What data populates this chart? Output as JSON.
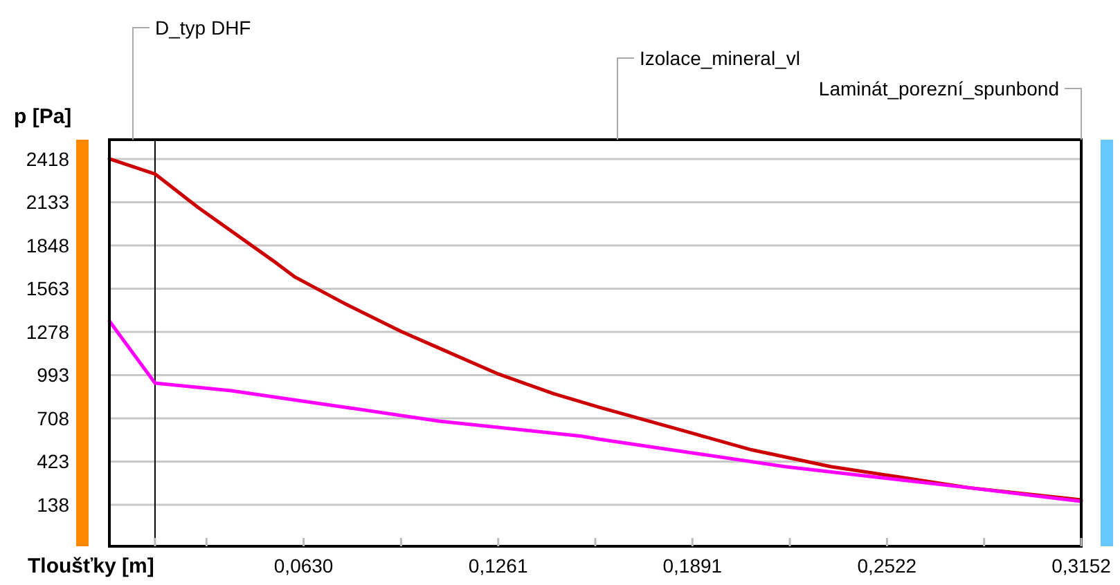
{
  "chart_data": {
    "type": "line",
    "xlabel": "Tloušťky [m]",
    "ylabel": "p [Pa]",
    "xlim": [
      0,
      0.3152
    ],
    "ylim": [
      -136,
      2546
    ],
    "xticks": [
      {
        "value": 0.0148,
        "label": null
      },
      {
        "value": 0.0315,
        "label": null
      },
      {
        "value": 0.063,
        "label": "0,0630"
      },
      {
        "value": 0.0946,
        "label": null
      },
      {
        "value": 0.1261,
        "label": "0,1261"
      },
      {
        "value": 0.1576,
        "label": null
      },
      {
        "value": 0.1891,
        "label": "0,1891"
      },
      {
        "value": 0.2207,
        "label": null
      },
      {
        "value": 0.2522,
        "label": "0,2522"
      },
      {
        "value": 0.2837,
        "label": null
      },
      {
        "value": 0.3152,
        "label": "0,3152"
      }
    ],
    "yticks": [
      138,
      423,
      708,
      993,
      1278,
      1563,
      1848,
      2133,
      2418
    ],
    "grid": "y",
    "marker": "none",
    "line_style": "solid",
    "series": [
      {
        "color": "#cc0000",
        "x": [
          0,
          0.0148,
          0.0287,
          0.0543,
          0.0602,
          0.0768,
          0.0947,
          0.1082,
          0.1262,
          0.1441,
          0.159,
          0.189,
          0.2083,
          0.2339,
          0.2564,
          0.2788,
          0.3152
        ],
        "values": [
          2420,
          2320,
          2100,
          1730,
          1640,
          1460,
          1280,
          1160,
          1000,
          870,
          780,
          610,
          500,
          390,
          320,
          250,
          170
        ]
      },
      {
        "color": "#ff00ff",
        "x": [
          0,
          0.0148,
          0.0395,
          0.0768,
          0.1069,
          0.1531,
          0.159,
          0.189,
          0.219,
          0.2487,
          0.2788,
          0.3152
        ],
        "values": [
          1350,
          940,
          890,
          780,
          690,
          590,
          570,
          480,
          390,
          320,
          250,
          160
        ]
      }
    ],
    "ref_lines": [
      {
        "axis": "x",
        "value": 0.0148,
        "color": "#000000"
      }
    ],
    "annotations": [
      "D_typ DHF",
      "Izolace_mineral_vl",
      "Laminát_porezní_spunbond"
    ]
  }
}
